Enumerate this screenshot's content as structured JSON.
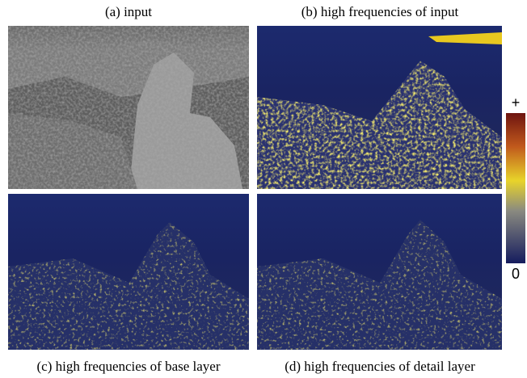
{
  "panels": [
    {
      "caption": "(a) input"
    },
    {
      "caption": "(b) high frequencies of input"
    },
    {
      "caption": "(c) high frequencies of base layer"
    },
    {
      "caption": "(d) high frequencies of detail layer"
    }
  ],
  "colorbar": {
    "max_label": "+",
    "min_label": "0"
  }
}
